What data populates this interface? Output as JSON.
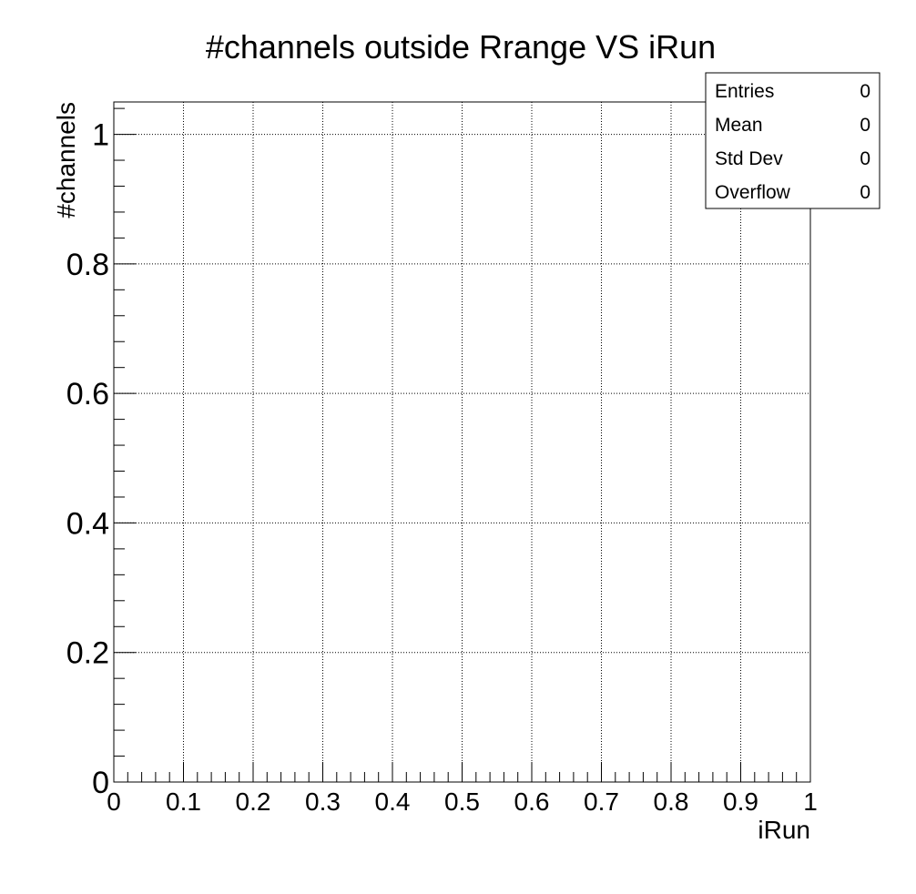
{
  "chart_data": {
    "type": "scatter",
    "title": "#channels outside Rrange VS iRun",
    "xlabel": "iRun",
    "ylabel": "#channels",
    "xlim": [
      0,
      1
    ],
    "ylim": [
      0,
      1.05
    ],
    "x_ticks": [
      "0",
      "0.1",
      "0.2",
      "0.3",
      "0.4",
      "0.5",
      "0.6",
      "0.7",
      "0.8",
      "0.9",
      "1"
    ],
    "y_ticks": [
      "0",
      "0.2",
      "0.4",
      "0.6",
      "0.8",
      "1"
    ],
    "grid": true,
    "legend_position": "top-right",
    "series": [],
    "stats_box": [
      {
        "label": "Entries",
        "value": "0"
      },
      {
        "label": "Mean",
        "value": "0"
      },
      {
        "label": "Std Dev",
        "value": "0"
      },
      {
        "label": "Overflow",
        "value": "0"
      }
    ]
  },
  "colors": {
    "axis": "#000000",
    "grid": "#000000",
    "background": "#ffffff"
  }
}
